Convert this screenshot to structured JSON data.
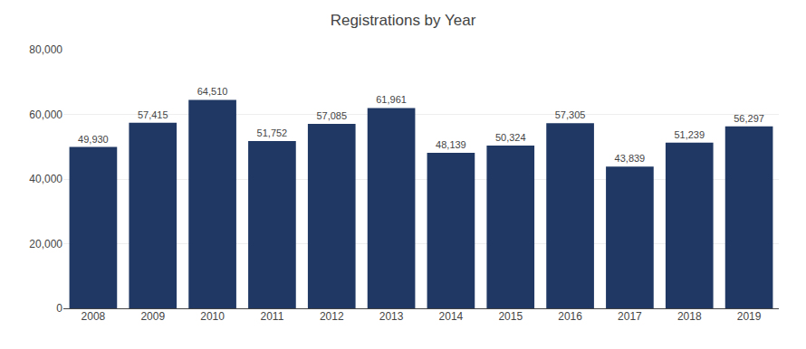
{
  "chart_data": {
    "type": "bar",
    "title": "Registrations by Year",
    "categories": [
      "2008",
      "2009",
      "2010",
      "2011",
      "2012",
      "2013",
      "2014",
      "2015",
      "2016",
      "2017",
      "2018",
      "2019"
    ],
    "values": [
      49930,
      57415,
      64510,
      51752,
      57085,
      61961,
      48139,
      50324,
      57305,
      43839,
      51239,
      56297
    ],
    "value_labels": [
      "49,930",
      "57,415",
      "64,510",
      "51,752",
      "57,085",
      "61,961",
      "48,139",
      "50,324",
      "57,305",
      "43,839",
      "51,239",
      "56,297"
    ],
    "data_labels": true,
    "color": "#1F3864",
    "ylim": [
      0,
      80000
    ],
    "yticks": [
      0,
      {
        "value": 20000,
        "label": "20,000"
      },
      {
        "value": 40000,
        "label": "40,000"
      },
      {
        "value": 60000,
        "label": "60,000"
      },
      {
        "value": 80000,
        "label": "80,000"
      }
    ],
    "grid": true
  }
}
